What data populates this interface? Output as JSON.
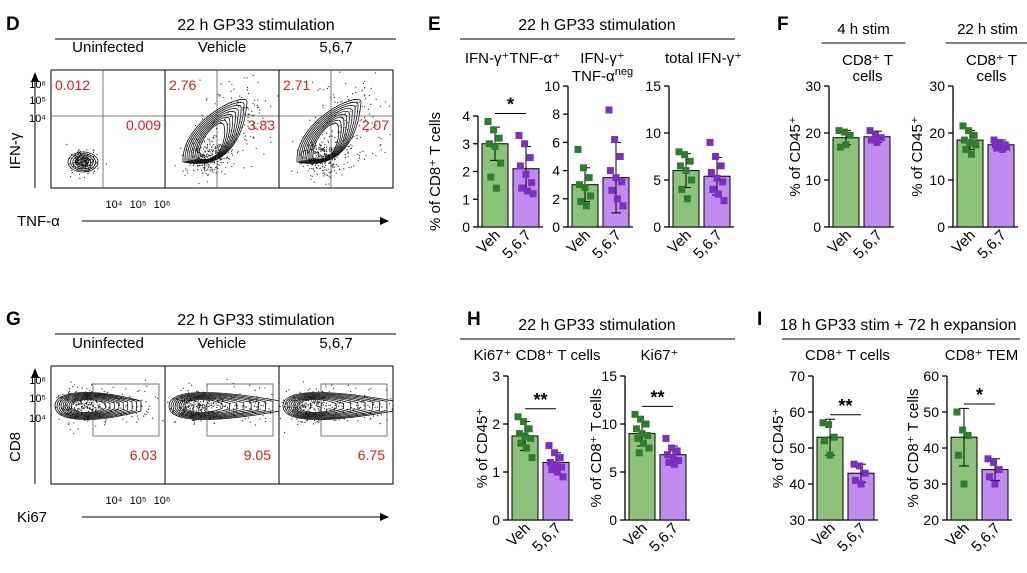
{
  "colors": {
    "veh_fill": "#8dc27a",
    "veh_point": "#2e7d2e",
    "treat_fill": "#c28bf0",
    "treat_point": "#7b2fbf",
    "gate_number": "#e31a1c",
    "axis": "#000000"
  },
  "panels": {
    "D": {
      "letter": "D",
      "title": "22 h GP33 stimulation",
      "y_axis": "IFN-γ",
      "x_axis": "TNF-α",
      "y_ticks": [
        "10⁶",
        "10⁵",
        "10⁴"
      ],
      "x_ticks": [
        "10⁴",
        "10⁵",
        "10⁶"
      ],
      "plots": [
        {
          "label": "Uninfected",
          "ul": "0.012",
          "lr": "0.009"
        },
        {
          "label": "Vehicle",
          "ul": "2.76",
          "lr": "3.83"
        },
        {
          "label": "5,6,7",
          "ul": "2.71",
          "lr": "2.07"
        }
      ]
    },
    "G": {
      "letter": "G",
      "title": "22 h GP33 stimulation",
      "y_axis": "CD8",
      "x_axis": "Ki67",
      "y_ticks": [
        "10⁶",
        "10⁵",
        "10⁴"
      ],
      "x_ticks": [
        "10⁴",
        "10⁵",
        "10⁶"
      ],
      "plots": [
        {
          "label": "Uninfected",
          "gate": "6.03"
        },
        {
          "label": "Vehicle",
          "gate": "9.05"
        },
        {
          "label": "5,6,7",
          "gate": "6.75"
        }
      ]
    },
    "E": {
      "letter": "E",
      "title": "22 h GP33 stimulation"
    },
    "F": {
      "letter": "F"
    },
    "H": {
      "letter": "H",
      "title": "22 h GP33 stimulation"
    },
    "I": {
      "letter": "I",
      "title": "18 h GP33 stim + 72 h expansion"
    }
  },
  "chart_data": [
    {
      "id": "E1",
      "type": "bar",
      "title": "IFN-γ⁺TNF-α⁺",
      "ylabel": "% of CD8⁺ T cells",
      "ylim": [
        0,
        4
      ],
      "yticks": [
        0,
        1,
        2,
        3,
        4
      ],
      "categories": [
        "Veh",
        "5,6,7"
      ],
      "means": [
        3.0,
        2.1
      ],
      "errors": [
        0.6,
        0.8
      ],
      "significance": "*",
      "points": [
        [
          3.8,
          3.5,
          3.2,
          3.0,
          2.9,
          2.3,
          1.8,
          1.4
        ],
        [
          3.3,
          3.0,
          2.5,
          2.2,
          1.9,
          1.6,
          1.4,
          1.3,
          1.2
        ]
      ]
    },
    {
      "id": "E2",
      "type": "bar",
      "title": "IFN-γ⁺",
      "title2": "TNF-α",
      "title2_sup": "neg",
      "ylabel": "",
      "ylim": [
        0,
        10
      ],
      "yticks": [
        0,
        2,
        4,
        6,
        8,
        10
      ],
      "categories": [
        "Veh",
        "5,6,7"
      ],
      "means": [
        3.0,
        3.5
      ],
      "errors": [
        1.2,
        2.5
      ],
      "significance": "",
      "points": [
        [
          5.5,
          4.2,
          3.5,
          3.0,
          2.8,
          2.2,
          1.8,
          1.5
        ],
        [
          8.3,
          6.2,
          5.0,
          4.0,
          3.5,
          3.2,
          2.6,
          2.0,
          1.5
        ]
      ]
    },
    {
      "id": "E3",
      "type": "bar",
      "title": "total IFN-γ⁺",
      "ylabel": "",
      "ylim": [
        0,
        15
      ],
      "yticks": [
        0,
        5,
        10,
        15
      ],
      "categories": [
        "Veh",
        "5,6,7"
      ],
      "means": [
        6.0,
        5.4
      ],
      "errors": [
        1.8,
        2.0
      ],
      "significance": "",
      "points": [
        [
          8.0,
          7.7,
          7.0,
          6.5,
          6.0,
          5.0,
          4.0,
          3.0
        ],
        [
          9.0,
          7.5,
          6.5,
          5.8,
          5.2,
          4.8,
          4.0,
          3.5,
          2.8
        ]
      ]
    },
    {
      "id": "F1",
      "type": "bar",
      "title": "4 h stim",
      "subtitle": "CD8⁺ T",
      "subtitle2": "cells",
      "ylabel": "% of CD45⁺",
      "ylim": [
        0,
        30
      ],
      "yticks": [
        0,
        10,
        20,
        30
      ],
      "categories": [
        "Veh",
        "5,6,7"
      ],
      "means": [
        19.0,
        19.2
      ],
      "errors": [
        1.5,
        1.2
      ],
      "significance": "",
      "points": [
        [
          20.5,
          20.2,
          19.5,
          17.0,
          17.5
        ],
        [
          20.5,
          19.5,
          19.0,
          18.5,
          18.0
        ]
      ]
    },
    {
      "id": "F2",
      "type": "bar",
      "title": "22 h stim",
      "subtitle": "CD8⁺ T",
      "subtitle2": "cells",
      "ylabel": "% of CD45⁺",
      "ylim": [
        0,
        30
      ],
      "yticks": [
        0,
        10,
        20,
        30
      ],
      "categories": [
        "Veh",
        "5,6,7"
      ],
      "means": [
        18.5,
        17.5
      ],
      "errors": [
        2.0,
        1.0
      ],
      "significance": "",
      "points": [
        [
          21.5,
          20.5,
          19.5,
          18.5,
          18.0,
          17.5,
          16.5,
          15.5
        ],
        [
          18.5,
          18.0,
          17.5,
          17.5,
          17.0,
          17.0,
          16.8,
          16.5
        ]
      ]
    },
    {
      "id": "H1",
      "type": "bar",
      "title": "Ki67⁺ CD8⁺ T cells",
      "ylabel": "% of CD45⁺",
      "ylim": [
        0,
        3
      ],
      "yticks": [
        0,
        1,
        2,
        3
      ],
      "categories": [
        "Veh",
        "5,6,7"
      ],
      "means": [
        1.75,
        1.2
      ],
      "errors": [
        0.3,
        0.2
      ],
      "significance": "**",
      "points": [
        [
          2.15,
          2.05,
          1.9,
          1.8,
          1.75,
          1.7,
          1.6,
          1.5,
          1.3
        ],
        [
          1.55,
          1.4,
          1.3,
          1.2,
          1.15,
          1.1,
          1.05,
          1.0,
          0.9
        ]
      ]
    },
    {
      "id": "H2",
      "type": "bar",
      "title": "Ki67⁺",
      "ylabel": "% of CD8⁺ T cells",
      "ylim": [
        0,
        15
      ],
      "yticks": [
        0,
        5,
        10,
        15
      ],
      "categories": [
        "Veh",
        "5,6,7"
      ],
      "means": [
        9.0,
        6.8
      ],
      "errors": [
        1.3,
        0.9
      ],
      "significance": "**",
      "points": [
        [
          11.0,
          10.5,
          10.0,
          9.5,
          9.0,
          8.8,
          8.5,
          8.0,
          7.5,
          7.0
        ],
        [
          8.5,
          7.5,
          7.2,
          6.8,
          6.5,
          6.2,
          6.0,
          5.8
        ]
      ]
    },
    {
      "id": "I1",
      "type": "bar",
      "title": "CD8⁺ T cells",
      "ylabel": "% of CD45⁺",
      "ylim": [
        30,
        70
      ],
      "yticks": [
        30,
        40,
        50,
        60,
        70
      ],
      "categories": [
        "Veh",
        "5,6,7"
      ],
      "means": [
        53.0,
        43.0
      ],
      "errors": [
        5.0,
        2.5
      ],
      "significance": "**",
      "points": [
        [
          57.0,
          56.5,
          53.0,
          52.0,
          48.0
        ],
        [
          45.5,
          45.0,
          43.0,
          41.0,
          40.0
        ]
      ]
    },
    {
      "id": "I2",
      "type": "bar",
      "title": "CD8⁺ TEM",
      "ylabel": "% of CD8⁺ T cells",
      "ylim": [
        20,
        60
      ],
      "yticks": [
        20,
        30,
        40,
        50,
        60
      ],
      "categories": [
        "Veh",
        "5,6,7"
      ],
      "means": [
        43.0,
        34.0
      ],
      "errors": [
        8.0,
        3.0
      ],
      "significance": "*",
      "points": [
        [
          50.0,
          45.0,
          43.5,
          38.0,
          30.0
        ],
        [
          37.0,
          36.0,
          34.0,
          32.0,
          30.0
        ]
      ]
    }
  ]
}
